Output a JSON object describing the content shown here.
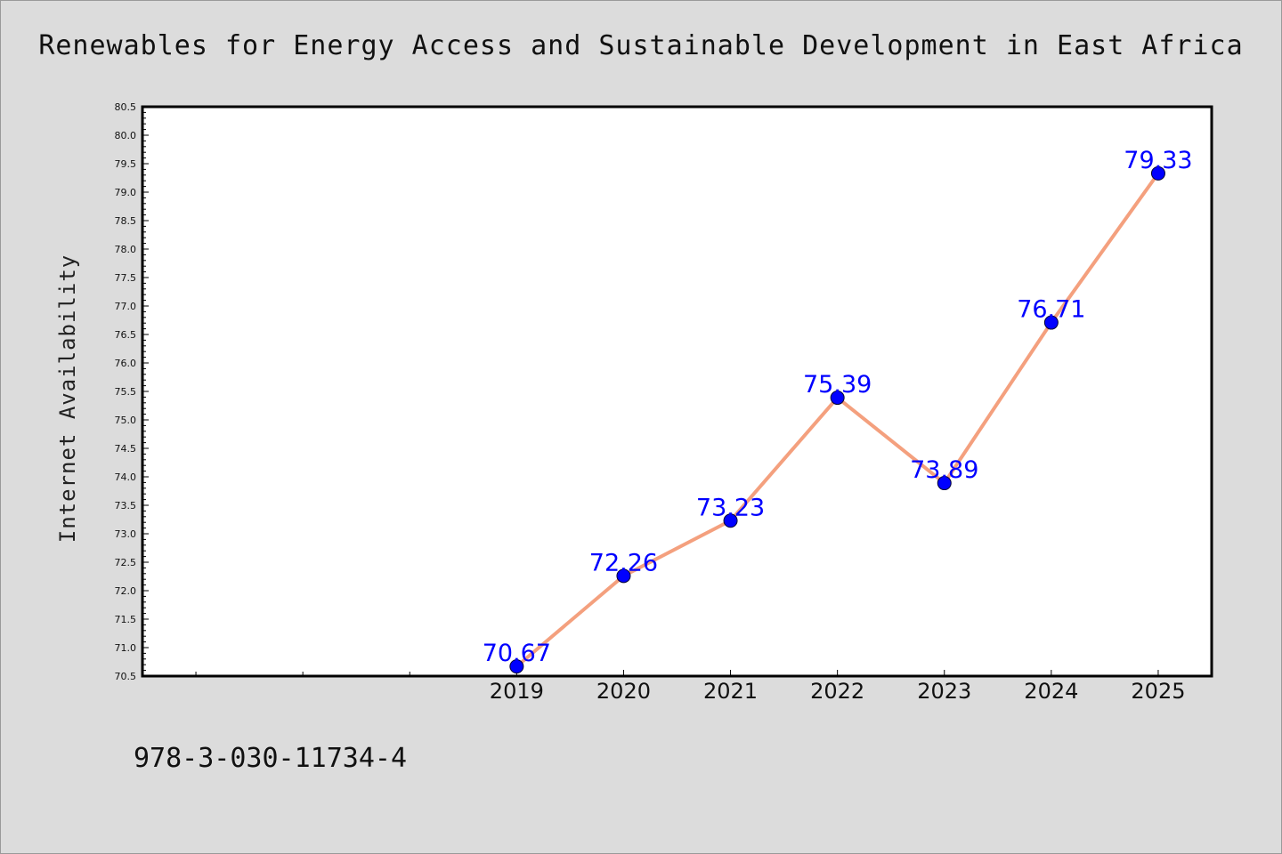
{
  "title": "Renewables for Energy Access and Sustainable Development in East Africa",
  "footer_code": "978-3-030-11734-4",
  "colors": {
    "background": "#dcdcdc",
    "plot_background": "#ffffff",
    "line": "#f4a07e",
    "marker": "#0000ff",
    "label": "#0000ff"
  },
  "chart_data": {
    "type": "line",
    "title": "Renewables for Energy Access and Sustainable Development in East Africa",
    "xlabel": "",
    "ylabel": "Internet Availability",
    "categories": [
      "2019",
      "2020",
      "2021",
      "2022",
      "2023",
      "2024",
      "2025"
    ],
    "series": [
      {
        "values": [
          70.67,
          72.26,
          73.23,
          75.39,
          73.89,
          76.71,
          79.33
        ],
        "labels": [
          "70.67",
          "72.26",
          "73.23",
          "75.39",
          "73.89",
          "76.71",
          "79.33"
        ]
      }
    ],
    "x_range": [
      2015.5,
      2025.5
    ],
    "ylim": [
      70.5,
      80.5
    ],
    "y_ticks": [
      "70.5",
      "71.0",
      "71.5",
      "72.0",
      "72.5",
      "73.0",
      "73.5",
      "74.0",
      "74.5",
      "75.0",
      "75.5",
      "76.0",
      "76.5",
      "77.0",
      "77.5",
      "78.0",
      "78.5",
      "79.0",
      "79.5",
      "80.0",
      "80.5"
    ],
    "unlabeled_x_ticks": [
      2016,
      2017,
      2018
    ],
    "grid": false,
    "legend": "none"
  }
}
